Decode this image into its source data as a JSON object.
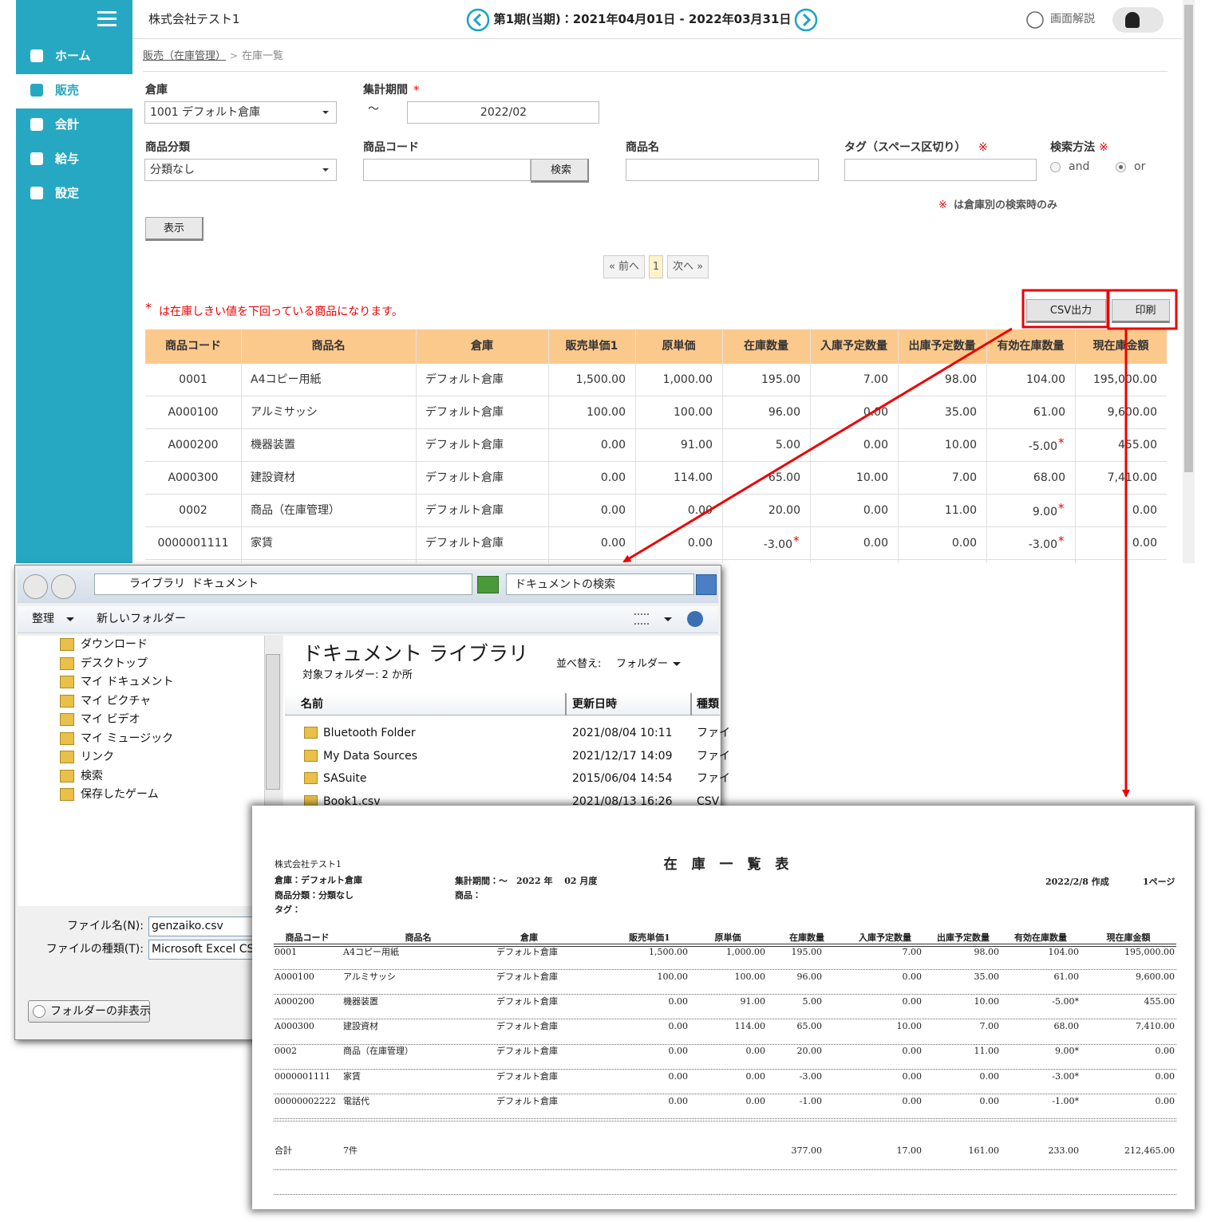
{
  "app": {
    "menu": [
      "ホーム",
      "販売",
      "会計",
      "給与",
      "設定"
    ],
    "header": {
      "company": "株式会社テスト1",
      "period": "第1期(当期)：2021年04月01日 - 2022年03月31日",
      "help": "画面解説"
    },
    "breadcrumb": {
      "parent": "販売（在庫管理）",
      "separator": ">",
      "current": "在庫一覧"
    },
    "form": {
      "warehouse_label": "倉庫",
      "warehouse": "1001 デフォルト倉庫",
      "period_label": "集計期間",
      "required": "*",
      "tilde": "～",
      "period": "2022/02",
      "category_label": "商品分類",
      "category": "分類なし",
      "code_label": "商品コード",
      "search_button": "検索",
      "name_label": "商品名",
      "tag_label": "タグ（スペース区切り）",
      "tag_mark": "※",
      "method_label": "検索方法",
      "method_mark": "※",
      "methods": [
        "and",
        "or"
      ],
      "note_mark": "※",
      "note": "は倉庫別の検索時のみ",
      "show_button": "表示"
    },
    "pagination": {
      "prev": "« 前へ",
      "page": "1",
      "next": "次へ »"
    },
    "notice": {
      "mark": "*",
      "text": "は在庫しきい値を下回っている商品になります。"
    },
    "buttons": {
      "csv": "CSV出力",
      "print": "印刷"
    },
    "table": {
      "columns": [
        "商品コード",
        "商品名",
        "倉庫",
        "販売単価1",
        "原単価",
        "在庫数量",
        "入庫予定数量",
        "出庫予定数量",
        "有効在庫数量",
        "現在庫金額"
      ],
      "rows": [
        [
          "0001",
          "A4コピー用紙",
          "デフォルト倉庫",
          "1,500.00",
          "1,000.00",
          "195.00",
          "7.00",
          "98.00",
          "104.00",
          "195,000.00"
        ],
        [
          "A000100",
          "アルミサッシ",
          "デフォルト倉庫",
          "100.00",
          "100.00",
          "96.00",
          "0.00",
          "35.00",
          "61.00",
          "9,600.00"
        ],
        [
          "A000200",
          "機器装置",
          "デフォルト倉庫",
          "0.00",
          "91.00",
          "5.00",
          "0.00",
          "10.00",
          {
            "value": "-5.00",
            "mark": "*"
          },
          "455.00"
        ],
        [
          "A000300",
          "建設資材",
          "デフォルト倉庫",
          "0.00",
          "114.00",
          "65.00",
          "10.00",
          "7.00",
          "68.00",
          "7,410.00"
        ],
        [
          "0002",
          "商品（在庫管理）",
          "デフォルト倉庫",
          "0.00",
          "0.00",
          "20.00",
          "0.00",
          "11.00",
          {
            "value": "9.00",
            "mark": "*"
          },
          "0.00"
        ],
        [
          "0000001111",
          "家賃",
          "デフォルト倉庫",
          "0.00",
          "0.00",
          {
            "value": "-3.00",
            "mark": "*"
          },
          "0.00",
          "0.00",
          {
            "value": "-3.00",
            "mark": "*"
          },
          "0.00"
        ]
      ]
    }
  },
  "dialog": {
    "path": [
      "ライブラリ",
      "ドキュメント"
    ],
    "search": "ドキュメントの検索",
    "organize": "整理",
    "new_folder": "新しいフォルダー",
    "tree": [
      "ダウンロード",
      "デスクトップ",
      "マイ ドキュメント",
      "マイ ピクチャ",
      "マイ ビデオ",
      "マイ ミュージック",
      "リンク",
      "検索",
      "保存したゲーム"
    ],
    "library_title": "ドキュメント ライブラリ",
    "library_sub": "対象フォルダー: 2 か所",
    "sort_label": "並べ替え:",
    "sort_value": "フォルダー",
    "columns": [
      "名前",
      "更新日時",
      "種類"
    ],
    "files": [
      {
        "name": "Bluetooth Folder",
        "date": "2021/08/04 10:11",
        "type": "ファイ"
      },
      {
        "name": "My Data Sources",
        "date": "2021/12/17 14:09",
        "type": "ファイ"
      },
      {
        "name": "SASuite",
        "date": "2015/06/04 14:54",
        "type": "ファイ"
      },
      {
        "name": "Book1.csv",
        "date": "2021/08/13 16:26",
        "type": "CSV"
      }
    ],
    "filename_label": "ファイル名(N):",
    "filename": "genzaiko.csv",
    "filetype_label": "ファイルの種類(T):",
    "filetype": "Microsoft Excel CS",
    "hide_folders": "フォルダーの非表示"
  },
  "report": {
    "company": "株式会社テスト1",
    "title": "在 庫 一 覧 表",
    "warehouse": "倉庫：デフォルト倉庫",
    "period": "集計期間：～　2022 年　 02 月度",
    "created": "2022/2/8 作成",
    "page": "1ページ",
    "category": "商品分類：分類なし",
    "product": "商品：",
    "tag": "タグ：",
    "columns": [
      "商品コード",
      "商品名",
      "倉庫",
      "販売単価1",
      "原単価",
      "在庫数量",
      "入庫予定数量",
      "出庫予定数量",
      "有効在庫数量",
      "現在庫金額"
    ],
    "rows": [
      [
        "0001",
        "A4コピー用紙",
        "デフォルト倉庫",
        "1,500.00",
        "1,000.00",
        "195.00",
        "7.00",
        "98.00",
        "104.00",
        "195,000.00"
      ],
      [
        "A000100",
        "アルミサッシ",
        "デフォルト倉庫",
        "100.00",
        "100.00",
        "96.00",
        "0.00",
        "35.00",
        "61.00",
        "9,600.00"
      ],
      [
        "A000200",
        "機器装置",
        "デフォルト倉庫",
        "0.00",
        "91.00",
        "5.00",
        "0.00",
        "10.00",
        "-5.00*",
        "455.00"
      ],
      [
        "A000300",
        "建設資材",
        "デフォルト倉庫",
        "0.00",
        "114.00",
        "65.00",
        "10.00",
        "7.00",
        "68.00",
        "7,410.00"
      ],
      [
        "0002",
        "商品（在庫管理）",
        "デフォルト倉庫",
        "0.00",
        "0.00",
        "20.00",
        "0.00",
        "11.00",
        "9.00*",
        "0.00"
      ],
      [
        "0000001111",
        "家賃",
        "デフォルト倉庫",
        "0.00",
        "0.00",
        "-3.00",
        "0.00",
        "0.00",
        "-3.00*",
        "0.00"
      ],
      [
        "00000002222",
        "電話代",
        "デフォルト倉庫",
        "0.00",
        "0.00",
        "-1.00",
        "0.00",
        "0.00",
        "-1.00*",
        "0.00"
      ]
    ],
    "total": {
      "label": "合計",
      "count": "7件",
      "values": [
        null,
        null,
        "377.00",
        "17.00",
        "161.00",
        "233.00",
        "212,465.00"
      ]
    }
  }
}
